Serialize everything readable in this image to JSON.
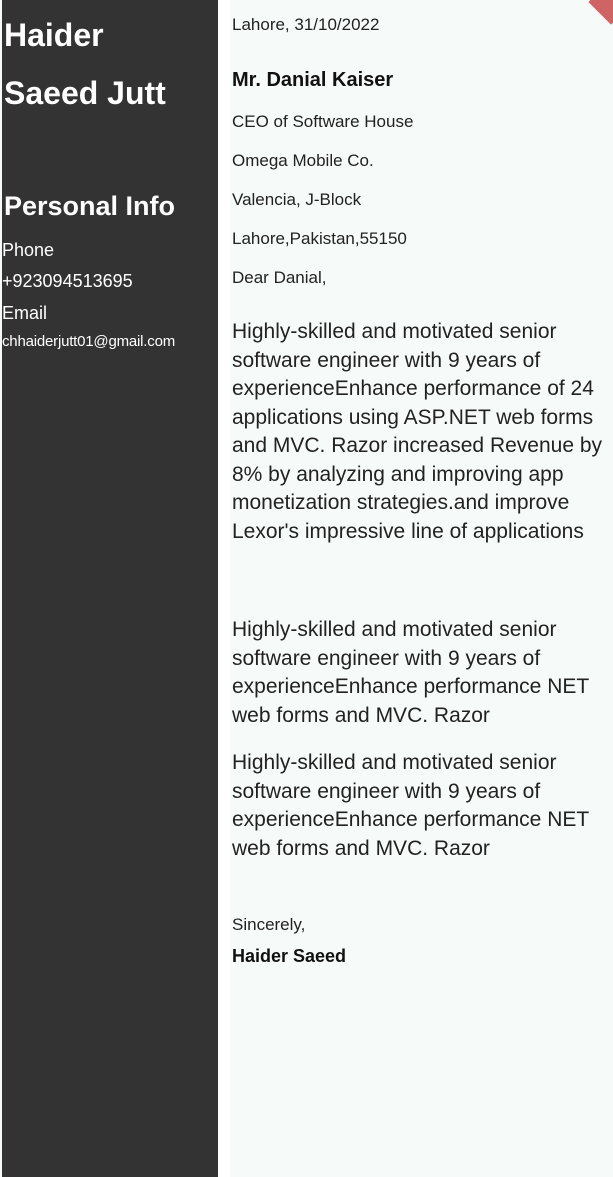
{
  "sidebar": {
    "first_name": "Haider",
    "last_name": "Saeed Jutt",
    "personal_heading": "Personal Info",
    "phone_label": "Phone",
    "phone_value": "+923094513695",
    "email_label": "Email",
    "email_value": "chhaiderjutt01@gmail.com"
  },
  "letter": {
    "place_date": "Lahore, 31/10/2022",
    "recipient_name": "Mr. Danial Kaiser",
    "recipient_role": "CEO of Software House",
    "company": "Omega Mobile Co.",
    "address_line1": "Valencia, J-Block",
    "address_line2": "Lahore,Pakistan,55150",
    "salutation": "Dear Danial,",
    "paragraphs": [
      "Highly-skilled and motivated senior software engineer with 9 years of experienceEnhance performance of 24 applications using ASP.NET web forms and MVC. Razor increased Revenue by 8% by analyzing and improving app monetization strategies.and improve Lexor's impressive line of applications",
      "Highly-skilled and motivated senior software engineer with 9 years of experienceEnhance performance NET web forms and MVC. Razor",
      "Highly-skilled and motivated senior software engineer with 9 years of experienceEnhance performance NET web forms and MVC. Razor"
    ],
    "closing": "Sincerely,",
    "signature": "Haider Saeed"
  },
  "colors": {
    "sidebar_bg": "#333333",
    "page_bg": "#f6faf9",
    "corner_accent": "#c74a4a"
  }
}
